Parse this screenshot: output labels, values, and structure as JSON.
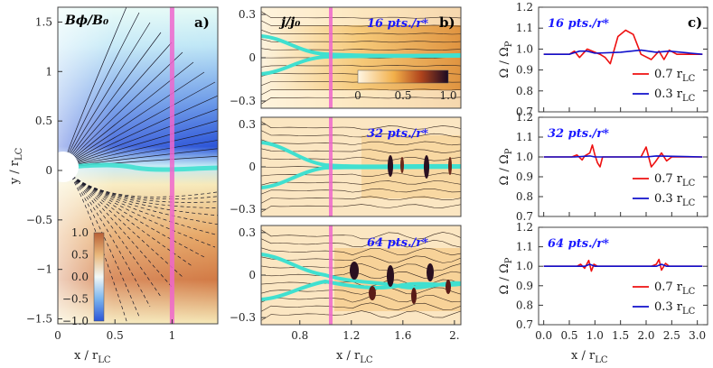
{
  "colors": {
    "rotation_line": "#ee66cc",
    "current_sheet": "#40e0d0",
    "series_red": "#ee1111",
    "series_blue": "#1111cc",
    "label_blue": "#1a1aff"
  },
  "chart_data": [
    {
      "type": "heatmap",
      "panel_label": "a)",
      "field_label": "Bϕ/B₀",
      "xlabel": "x / r",
      "xlabel_sub": "LC",
      "ylabel": "y / r",
      "ylabel_sub": "LC",
      "xlim": [
        0,
        1.4
      ],
      "ylim": [
        -1.55,
        1.65
      ],
      "xticks": [
        "0",
        "0.5",
        "1"
      ],
      "yticks": [
        "1.5",
        "1",
        "0.5",
        "0",
        "-0.5",
        "-1",
        "-1.5"
      ],
      "light_cylinder_x": 1.0,
      "colorbar": {
        "range": [
          -1.0,
          1.0
        ],
        "ticks": [
          "1.0",
          "0.5",
          "0.0",
          "-0.5",
          "-1.0"
        ]
      }
    },
    {
      "type": "heatmap",
      "panel_label": "b)",
      "field_label": "j/j₀",
      "xlabel": "x / r",
      "xlabel_sub": "LC",
      "xlim": [
        0.5,
        2.05
      ],
      "xticks": [
        "0.8",
        "1.2",
        "1.6",
        "2."
      ],
      "light_cylinder_x": 1.0,
      "colorbar": {
        "range": [
          0,
          1.0
        ],
        "ticks": [
          "0",
          "0.5",
          "1.0"
        ]
      },
      "subpanels": [
        {
          "label": "16 pts./r*",
          "ylim": [
            -0.35,
            0.35
          ],
          "yticks": [
            "0.3",
            "0",
            "-0.3"
          ]
        },
        {
          "label": "32 pts./r*",
          "ylim": [
            -0.35,
            0.35
          ],
          "yticks": [
            "0.3",
            "0",
            "-0.3"
          ]
        },
        {
          "label": "64 pts./r*",
          "ylim": [
            -0.35,
            0.35
          ],
          "yticks": [
            "0.3",
            "0",
            "-0.3"
          ]
        }
      ]
    },
    {
      "type": "line",
      "panel_label": "c)",
      "xlabel": "x / r",
      "xlabel_sub": "LC",
      "ylabel": "Ω / Ω",
      "ylabel_sub": "P",
      "xlim": [
        -0.1,
        3.2
      ],
      "ylim": [
        0.7,
        1.2
      ],
      "xticks": [
        "0.0",
        "0.5",
        "1.0",
        "1.5",
        "2.0",
        "2.5",
        "3.0"
      ],
      "yticks": [
        "1.2",
        "1.1",
        "1.0",
        "0.9",
        "0.8",
        "0.7"
      ],
      "legend_position": "bottom-right",
      "subpanels": [
        {
          "label": "16 pts./r*",
          "series": [
            {
              "name": "0.7 r",
              "name_sub": "LC",
              "color": "#ee1111",
              "points": [
                [
                  0,
                  0.975
                ],
                [
                  0.5,
                  0.975
                ],
                [
                  0.6,
                  0.99
                ],
                [
                  0.7,
                  0.96
                ],
                [
                  0.85,
                  1.0
                ],
                [
                  0.95,
                  0.99
                ],
                [
                  1.1,
                  0.975
                ],
                [
                  1.2,
                  0.96
                ],
                [
                  1.3,
                  0.93
                ],
                [
                  1.45,
                  1.06
                ],
                [
                  1.6,
                  1.09
                ],
                [
                  1.75,
                  1.07
                ],
                [
                  1.9,
                  0.975
                ],
                [
                  2.1,
                  0.95
                ],
                [
                  2.25,
                  0.99
                ],
                [
                  2.35,
                  0.95
                ],
                [
                  2.45,
                  0.995
                ],
                [
                  2.6,
                  0.975
                ],
                [
                  3.1,
                  0.975
                ]
              ]
            },
            {
              "name": "0.3 r",
              "name_sub": "LC",
              "color": "#1111cc",
              "points": [
                [
                  0,
                  0.975
                ],
                [
                  0.5,
                  0.975
                ],
                [
                  0.7,
                  0.99
                ],
                [
                  0.85,
                  0.99
                ],
                [
                  1.0,
                  0.98
                ],
                [
                  1.5,
                  0.985
                ],
                [
                  1.9,
                  0.995
                ],
                [
                  2.2,
                  0.985
                ],
                [
                  2.45,
                  0.99
                ],
                [
                  3.1,
                  0.975
                ]
              ]
            }
          ]
        },
        {
          "label": "32 pts./r*",
          "series": [
            {
              "name": "0.7 r",
              "name_sub": "LC",
              "color": "#ee1111",
              "points": [
                [
                  0,
                  1.0
                ],
                [
                  0.55,
                  1.0
                ],
                [
                  0.65,
                  1.01
                ],
                [
                  0.75,
                  0.985
                ],
                [
                  0.8,
                  1.005
                ],
                [
                  0.9,
                  1.02
                ],
                [
                  0.95,
                  1.06
                ],
                [
                  1.0,
                  1.01
                ],
                [
                  1.05,
                  0.97
                ],
                [
                  1.1,
                  0.95
                ],
                [
                  1.15,
                  1.0
                ],
                [
                  1.3,
                  1.0
                ],
                [
                  1.9,
                  1.0
                ],
                [
                  2.0,
                  1.05
                ],
                [
                  2.05,
                  1.0
                ],
                [
                  2.1,
                  0.95
                ],
                [
                  2.18,
                  0.975
                ],
                [
                  2.3,
                  1.02
                ],
                [
                  2.4,
                  0.98
                ],
                [
                  2.5,
                  1.0
                ],
                [
                  3.1,
                  1.0
                ]
              ]
            },
            {
              "name": "0.3 r",
              "name_sub": "LC",
              "color": "#1111cc",
              "points": [
                [
                  0,
                  1.0
                ],
                [
                  0.6,
                  1.0
                ],
                [
                  0.9,
                  1.005
                ],
                [
                  1.0,
                  1.0
                ],
                [
                  2.0,
                  1.0
                ],
                [
                  2.2,
                  1.005
                ],
                [
                  3.1,
                  1.0
                ]
              ]
            }
          ]
        },
        {
          "label": "64 pts./r*",
          "series": [
            {
              "name": "0.7 r",
              "name_sub": "LC",
              "color": "#ee1111",
              "points": [
                [
                  0,
                  1.0
                ],
                [
                  0.65,
                  1.0
                ],
                [
                  0.72,
                  1.01
                ],
                [
                  0.8,
                  0.99
                ],
                [
                  0.88,
                  1.03
                ],
                [
                  0.93,
                  0.975
                ],
                [
                  0.98,
                  1.01
                ],
                [
                  1.05,
                  1.0
                ],
                [
                  2.1,
                  1.0
                ],
                [
                  2.2,
                  1.01
                ],
                [
                  2.25,
                  1.035
                ],
                [
                  2.3,
                  0.98
                ],
                [
                  2.38,
                  1.015
                ],
                [
                  2.45,
                  1.0
                ],
                [
                  3.1,
                  1.0
                ]
              ]
            },
            {
              "name": "0.3 r",
              "name_sub": "LC",
              "color": "#1111cc",
              "points": [
                [
                  0,
                  1.0
                ],
                [
                  0.8,
                  1.0
                ],
                [
                  0.9,
                  1.01
                ],
                [
                  1.0,
                  1.0
                ],
                [
                  2.2,
                  1.0
                ],
                [
                  2.3,
                  1.01
                ],
                [
                  2.4,
                  1.0
                ],
                [
                  3.1,
                  1.0
                ]
              ]
            }
          ]
        }
      ]
    }
  ]
}
